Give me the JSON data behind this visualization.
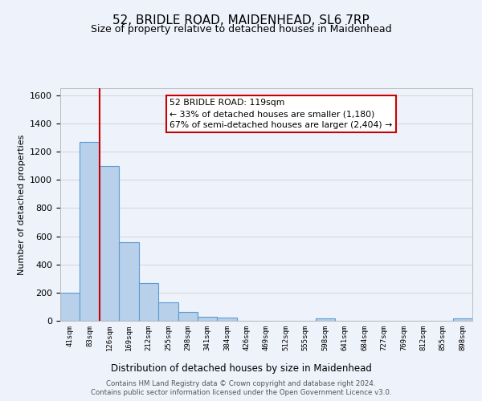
{
  "title": "52, BRIDLE ROAD, MAIDENHEAD, SL6 7RP",
  "subtitle": "Size of property relative to detached houses in Maidenhead",
  "xlabel": "Distribution of detached houses by size in Maidenhead",
  "ylabel": "Number of detached properties",
  "bin_labels": [
    "41sqm",
    "83sqm",
    "126sqm",
    "169sqm",
    "212sqm",
    "255sqm",
    "298sqm",
    "341sqm",
    "384sqm",
    "426sqm",
    "469sqm",
    "512sqm",
    "555sqm",
    "598sqm",
    "641sqm",
    "684sqm",
    "727sqm",
    "769sqm",
    "812sqm",
    "855sqm",
    "898sqm"
  ],
  "bar_heights": [
    200,
    1270,
    1100,
    555,
    270,
    130,
    63,
    30,
    20,
    0,
    0,
    0,
    0,
    15,
    0,
    0,
    0,
    0,
    0,
    0,
    15
  ],
  "bar_color": "#b8d0ea",
  "bar_edge_color": "#5b9bd5",
  "vline_color": "#cc0000",
  "ylim": [
    0,
    1650
  ],
  "yticks": [
    0,
    200,
    400,
    600,
    800,
    1000,
    1200,
    1400,
    1600
  ],
  "annotation_text_line1": "52 BRIDLE ROAD: 119sqm",
  "annotation_text_line2": "← 33% of detached houses are smaller (1,180)",
  "annotation_text_line3": "67% of semi-detached houses are larger (2,404) →",
  "footer_line1": "Contains HM Land Registry data © Crown copyright and database right 2024.",
  "footer_line2": "Contains public sector information licensed under the Open Government Licence v3.0.",
  "bg_color": "#eef2fb",
  "plot_bg_color": "#eef2fb",
  "title_fontsize": 11,
  "subtitle_fontsize": 9,
  "grid_color": "#d0d0d0"
}
